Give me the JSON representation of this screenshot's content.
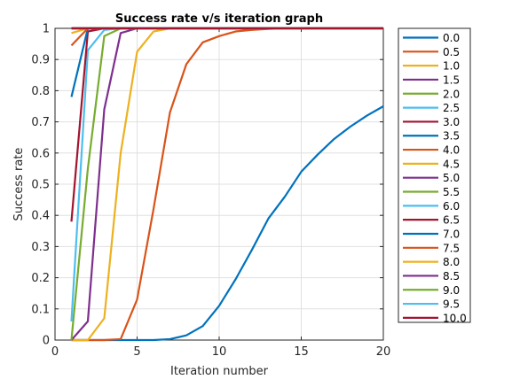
{
  "chart_data": {
    "type": "line",
    "title": "Success rate v/s iteration graph",
    "xlabel": "Iteration number",
    "ylabel": "Success rate",
    "xlim": [
      0,
      20
    ],
    "ylim": [
      0,
      1
    ],
    "xticks": [
      0,
      5,
      10,
      15,
      20
    ],
    "yticks": [
      0,
      0.1,
      0.2,
      0.3,
      0.4,
      0.5,
      0.6,
      0.7,
      0.8,
      0.9,
      1
    ],
    "xtick_labels": [
      "0",
      "5",
      "10",
      "15",
      "20"
    ],
    "ytick_labels": [
      "0",
      "0.1",
      "0.2",
      "0.3",
      "0.4",
      "0.5",
      "0.6",
      "0.7",
      "0.8",
      "0.9",
      "1"
    ],
    "grid": true,
    "legend_position": "outside right",
    "series": [
      {
        "name": "0.0",
        "color": "#0072BD",
        "x": [
          1,
          2,
          3,
          4,
          5,
          6,
          7,
          8,
          9,
          10,
          11,
          12,
          13,
          14,
          15,
          16,
          17,
          18,
          19,
          20
        ],
        "y": [
          0,
          0,
          0,
          0,
          0,
          0,
          0.003,
          0.015,
          0.045,
          0.11,
          0.195,
          0.29,
          0.39,
          0.46,
          0.54,
          0.595,
          0.645,
          0.685,
          0.72,
          0.75
        ]
      },
      {
        "name": "0.5",
        "color": "#D95319",
        "x": [
          1,
          2,
          3,
          4,
          5,
          6,
          7,
          8,
          9,
          10,
          11,
          12,
          13,
          14,
          15,
          16,
          17,
          18,
          19,
          20
        ],
        "y": [
          0,
          0,
          0,
          0.003,
          0.13,
          0.42,
          0.73,
          0.885,
          0.955,
          0.975,
          0.99,
          0.995,
          0.998,
          1,
          1,
          1,
          1,
          1,
          1,
          1
        ]
      },
      {
        "name": "1.0",
        "color": "#EDB120",
        "x": [
          1,
          2,
          3,
          4,
          5,
          6,
          7,
          8,
          9,
          10,
          11,
          12,
          13,
          14,
          15,
          16,
          17,
          18,
          19,
          20
        ],
        "y": [
          0,
          0,
          0.07,
          0.6,
          0.925,
          0.99,
          1,
          1,
          1,
          1,
          1,
          1,
          1,
          1,
          1,
          1,
          1,
          1,
          1,
          1
        ]
      },
      {
        "name": "1.5",
        "color": "#7E2F8E",
        "x": [
          1,
          2,
          3,
          4,
          5,
          6,
          7,
          8,
          9,
          10,
          11,
          12,
          13,
          14,
          15,
          16,
          17,
          18,
          19,
          20
        ],
        "y": [
          0,
          0.06,
          0.74,
          0.985,
          1,
          1,
          1,
          1,
          1,
          1,
          1,
          1,
          1,
          1,
          1,
          1,
          1,
          1,
          1,
          1
        ]
      },
      {
        "name": "2.0",
        "color": "#77AC30",
        "x": [
          1,
          2,
          3,
          4,
          5,
          6,
          7,
          8,
          9,
          10,
          11,
          12,
          13,
          14,
          15,
          16,
          17,
          18,
          19,
          20
        ],
        "y": [
          0,
          0.55,
          0.975,
          1,
          1,
          1,
          1,
          1,
          1,
          1,
          1,
          1,
          1,
          1,
          1,
          1,
          1,
          1,
          1,
          1
        ]
      },
      {
        "name": "2.5",
        "color": "#4DBEEE",
        "x": [
          1,
          2,
          3,
          4,
          5,
          6,
          7,
          8,
          9,
          10,
          11,
          12,
          13,
          14,
          15,
          16,
          17,
          18,
          19,
          20
        ],
        "y": [
          0.06,
          0.93,
          0.995,
          1,
          1,
          1,
          1,
          1,
          1,
          1,
          1,
          1,
          1,
          1,
          1,
          1,
          1,
          1,
          1,
          1
        ]
      },
      {
        "name": "3.0",
        "color": "#A2142F",
        "x": [
          1,
          2,
          3,
          4,
          5,
          6,
          7,
          8,
          9,
          10,
          11,
          12,
          13,
          14,
          15,
          16,
          17,
          18,
          19,
          20
        ],
        "y": [
          0.38,
          0.99,
          1,
          1,
          1,
          1,
          1,
          1,
          1,
          1,
          1,
          1,
          1,
          1,
          1,
          1,
          1,
          1,
          1,
          1
        ]
      },
      {
        "name": "3.5",
        "color": "#0072BD",
        "x": [
          1,
          2,
          3,
          4,
          5,
          6,
          7,
          8,
          9,
          10,
          11,
          12,
          13,
          14,
          15,
          16,
          17,
          18,
          19,
          20
        ],
        "y": [
          0.78,
          1,
          1,
          1,
          1,
          1,
          1,
          1,
          1,
          1,
          1,
          1,
          1,
          1,
          1,
          1,
          1,
          1,
          1,
          1
        ]
      },
      {
        "name": "4.0",
        "color": "#D95319",
        "x": [
          1,
          2,
          3,
          4,
          5,
          6,
          7,
          8,
          9,
          10,
          11,
          12,
          13,
          14,
          15,
          16,
          17,
          18,
          19,
          20
        ],
        "y": [
          0.945,
          1,
          1,
          1,
          1,
          1,
          1,
          1,
          1,
          1,
          1,
          1,
          1,
          1,
          1,
          1,
          1,
          1,
          1,
          1
        ]
      },
      {
        "name": "4.5",
        "color": "#EDB120",
        "x": [
          1,
          2,
          3,
          4,
          5,
          6,
          7,
          8,
          9,
          10,
          11,
          12,
          13,
          14,
          15,
          16,
          17,
          18,
          19,
          20
        ],
        "y": [
          0.985,
          1,
          1,
          1,
          1,
          1,
          1,
          1,
          1,
          1,
          1,
          1,
          1,
          1,
          1,
          1,
          1,
          1,
          1,
          1
        ]
      },
      {
        "name": "5.0",
        "color": "#7E2F8E",
        "x": [
          1,
          2,
          3,
          4,
          5,
          6,
          7,
          8,
          9,
          10,
          11,
          12,
          13,
          14,
          15,
          16,
          17,
          18,
          19,
          20
        ],
        "y": [
          1,
          1,
          1,
          1,
          1,
          1,
          1,
          1,
          1,
          1,
          1,
          1,
          1,
          1,
          1,
          1,
          1,
          1,
          1,
          1
        ]
      },
      {
        "name": "5.5",
        "color": "#77AC30",
        "x": [
          1,
          2,
          3,
          4,
          5,
          6,
          7,
          8,
          9,
          10,
          11,
          12,
          13,
          14,
          15,
          16,
          17,
          18,
          19,
          20
        ],
        "y": [
          1,
          1,
          1,
          1,
          1,
          1,
          1,
          1,
          1,
          1,
          1,
          1,
          1,
          1,
          1,
          1,
          1,
          1,
          1,
          1
        ]
      },
      {
        "name": "6.0",
        "color": "#4DBEEE",
        "x": [
          1,
          2,
          3,
          4,
          5,
          6,
          7,
          8,
          9,
          10,
          11,
          12,
          13,
          14,
          15,
          16,
          17,
          18,
          19,
          20
        ],
        "y": [
          1,
          1,
          1,
          1,
          1,
          1,
          1,
          1,
          1,
          1,
          1,
          1,
          1,
          1,
          1,
          1,
          1,
          1,
          1,
          1
        ]
      },
      {
        "name": "6.5",
        "color": "#A2142F",
        "x": [
          1,
          2,
          3,
          4,
          5,
          6,
          7,
          8,
          9,
          10,
          11,
          12,
          13,
          14,
          15,
          16,
          17,
          18,
          19,
          20
        ],
        "y": [
          1,
          1,
          1,
          1,
          1,
          1,
          1,
          1,
          1,
          1,
          1,
          1,
          1,
          1,
          1,
          1,
          1,
          1,
          1,
          1
        ]
      },
      {
        "name": "7.0",
        "color": "#0072BD",
        "x": [
          1,
          2,
          3,
          4,
          5,
          6,
          7,
          8,
          9,
          10,
          11,
          12,
          13,
          14,
          15,
          16,
          17,
          18,
          19,
          20
        ],
        "y": [
          1,
          1,
          1,
          1,
          1,
          1,
          1,
          1,
          1,
          1,
          1,
          1,
          1,
          1,
          1,
          1,
          1,
          1,
          1,
          1
        ]
      },
      {
        "name": "7.5",
        "color": "#D95319",
        "x": [
          1,
          2,
          3,
          4,
          5,
          6,
          7,
          8,
          9,
          10,
          11,
          12,
          13,
          14,
          15,
          16,
          17,
          18,
          19,
          20
        ],
        "y": [
          1,
          1,
          1,
          1,
          1,
          1,
          1,
          1,
          1,
          1,
          1,
          1,
          1,
          1,
          1,
          1,
          1,
          1,
          1,
          1
        ]
      },
      {
        "name": "8.0",
        "color": "#EDB120",
        "x": [
          1,
          2,
          3,
          4,
          5,
          6,
          7,
          8,
          9,
          10,
          11,
          12,
          13,
          14,
          15,
          16,
          17,
          18,
          19,
          20
        ],
        "y": [
          1,
          1,
          1,
          1,
          1,
          1,
          1,
          1,
          1,
          1,
          1,
          1,
          1,
          1,
          1,
          1,
          1,
          1,
          1,
          1
        ]
      },
      {
        "name": "8.5",
        "color": "#7E2F8E",
        "x": [
          1,
          2,
          3,
          4,
          5,
          6,
          7,
          8,
          9,
          10,
          11,
          12,
          13,
          14,
          15,
          16,
          17,
          18,
          19,
          20
        ],
        "y": [
          1,
          1,
          1,
          1,
          1,
          1,
          1,
          1,
          1,
          1,
          1,
          1,
          1,
          1,
          1,
          1,
          1,
          1,
          1,
          1
        ]
      },
      {
        "name": "9.0",
        "color": "#77AC30",
        "x": [
          1,
          2,
          3,
          4,
          5,
          6,
          7,
          8,
          9,
          10,
          11,
          12,
          13,
          14,
          15,
          16,
          17,
          18,
          19,
          20
        ],
        "y": [
          1,
          1,
          1,
          1,
          1,
          1,
          1,
          1,
          1,
          1,
          1,
          1,
          1,
          1,
          1,
          1,
          1,
          1,
          1,
          1
        ]
      },
      {
        "name": "9.5",
        "color": "#4DBEEE",
        "x": [
          1,
          2,
          3,
          4,
          5,
          6,
          7,
          8,
          9,
          10,
          11,
          12,
          13,
          14,
          15,
          16,
          17,
          18,
          19,
          20
        ],
        "y": [
          1,
          1,
          1,
          1,
          1,
          1,
          1,
          1,
          1,
          1,
          1,
          1,
          1,
          1,
          1,
          1,
          1,
          1,
          1,
          1
        ]
      },
      {
        "name": "10.0",
        "color": "#A2142F",
        "x": [
          1,
          2,
          3,
          4,
          5,
          6,
          7,
          8,
          9,
          10,
          11,
          12,
          13,
          14,
          15,
          16,
          17,
          18,
          19,
          20
        ],
        "y": [
          1,
          1,
          1,
          1,
          1,
          1,
          1,
          1,
          1,
          1,
          1,
          1,
          1,
          1,
          1,
          1,
          1,
          1,
          1,
          1
        ]
      }
    ]
  }
}
